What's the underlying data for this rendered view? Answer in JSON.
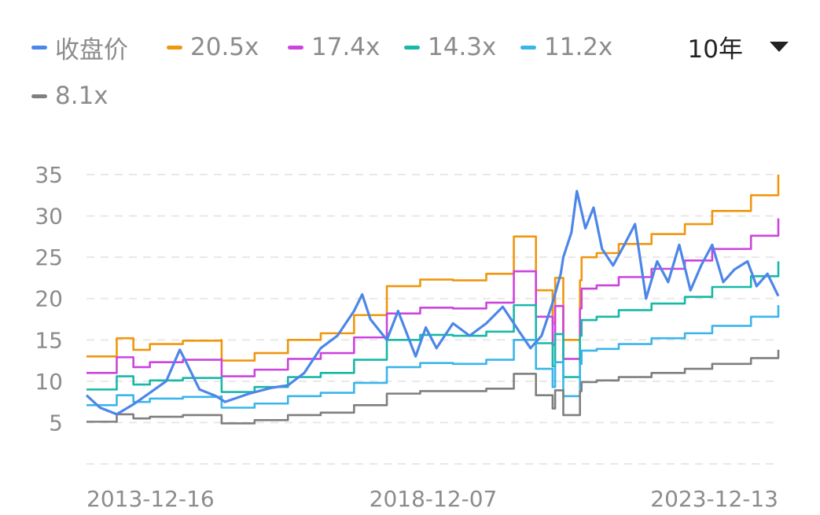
{
  "legend": [
    {
      "label": "收盘价",
      "color": "#4d86e8"
    },
    {
      "label": "20.5x",
      "color": "#f0960e"
    },
    {
      "label": "17.4x",
      "color": "#cc44dd"
    },
    {
      "label": "14.3x",
      "color": "#17b8a8"
    },
    {
      "label": "11.2x",
      "color": "#3ab5ea"
    },
    {
      "label": "8.1x",
      "color": "#7f7f7f"
    }
  ],
  "period_selector": {
    "label": "10年"
  },
  "chart_data": {
    "type": "line",
    "ylim": [
      0,
      35
    ],
    "yticks": [
      35,
      30,
      25,
      20,
      15,
      10,
      5
    ],
    "x_ticks": [
      "2013-12-16",
      "2018-12-07",
      "2023-12-13"
    ],
    "x_range": [
      "2013-12-16",
      "2024-05-31"
    ],
    "grid": true,
    "legend_position": "top-left",
    "series": [
      {
        "name": "20.5x",
        "color": "#f0960e",
        "x": [
          "2013-12-16",
          "2014-06-01",
          "2014-06-01",
          "2014-09-01",
          "2014-12-01",
          "2015-06-01",
          "2016-01-01",
          "2016-01-01",
          "2016-07-01",
          "2017-01-01",
          "2017-07-01",
          "2018-01-01",
          "2018-07-01",
          "2019-01-01",
          "2019-07-01",
          "2020-01-01",
          "2020-06-01",
          "2020-06-01",
          "2020-10-01",
          "2021-01-01",
          "2021-01-15",
          "2021-03-01",
          "2021-06-01",
          "2021-06-10",
          "2021-09-01",
          "2022-01-01",
          "2022-07-01",
          "2023-01-01",
          "2023-06-01",
          "2024-01-01",
          "2024-05-31"
        ],
        "y": [
          13.0,
          13.8,
          15.2,
          13.8,
          14.5,
          14.9,
          15.0,
          12.5,
          13.4,
          15.0,
          15.8,
          18.0,
          21.5,
          22.3,
          22.2,
          23.0,
          23.8,
          27.5,
          21.0,
          17.0,
          22.5,
          15.0,
          22.2,
          25.0,
          25.5,
          26.6,
          27.8,
          29.0,
          30.6,
          32.5,
          35.0
        ]
      },
      {
        "name": "17.4x",
        "color": "#cc44dd",
        "x": [
          "2013-12-16",
          "2014-06-01",
          "2014-06-01",
          "2014-09-01",
          "2014-12-01",
          "2015-06-01",
          "2016-01-01",
          "2016-01-01",
          "2016-07-01",
          "2017-01-01",
          "2017-07-01",
          "2018-01-01",
          "2018-07-01",
          "2019-01-01",
          "2019-07-01",
          "2020-01-01",
          "2020-06-01",
          "2020-06-01",
          "2020-10-01",
          "2021-01-01",
          "2021-01-15",
          "2021-03-01",
          "2021-06-01",
          "2021-06-10",
          "2021-09-01",
          "2022-01-01",
          "2022-07-01",
          "2023-01-01",
          "2023-06-01",
          "2024-01-01",
          "2024-05-31"
        ],
        "y": [
          11.0,
          11.7,
          12.9,
          11.7,
          12.3,
          12.6,
          12.7,
          10.6,
          11.4,
          12.7,
          13.4,
          15.3,
          18.2,
          18.9,
          18.8,
          19.5,
          20.2,
          23.3,
          17.8,
          14.4,
          19.1,
          12.7,
          18.8,
          21.2,
          21.6,
          22.6,
          23.6,
          24.6,
          26.0,
          27.6,
          29.7
        ]
      },
      {
        "name": "14.3x",
        "color": "#17b8a8",
        "x": [
          "2013-12-16",
          "2014-06-01",
          "2014-06-01",
          "2014-09-01",
          "2014-12-01",
          "2015-06-01",
          "2016-01-01",
          "2016-01-01",
          "2016-07-01",
          "2017-01-01",
          "2017-07-01",
          "2018-01-01",
          "2018-07-01",
          "2019-01-01",
          "2019-07-01",
          "2020-01-01",
          "2020-06-01",
          "2020-06-01",
          "2020-10-01",
          "2021-01-01",
          "2021-01-15",
          "2021-03-01",
          "2021-06-01",
          "2021-06-10",
          "2021-09-01",
          "2022-01-01",
          "2022-07-01",
          "2023-01-01",
          "2023-06-01",
          "2024-01-01",
          "2024-05-31"
        ],
        "y": [
          9.0,
          9.6,
          10.6,
          9.6,
          10.1,
          10.4,
          10.5,
          8.7,
          9.3,
          10.5,
          11.0,
          12.6,
          15.0,
          15.6,
          15.5,
          16.0,
          16.6,
          19.2,
          14.6,
          11.8,
          15.7,
          10.5,
          15.5,
          17.4,
          17.8,
          18.6,
          19.4,
          20.2,
          21.4,
          22.7,
          24.5
        ]
      },
      {
        "name": "11.2x",
        "color": "#3ab5ea",
        "x": [
          "2013-12-16",
          "2014-06-01",
          "2014-06-01",
          "2014-09-01",
          "2014-12-01",
          "2015-06-01",
          "2016-01-01",
          "2016-01-01",
          "2016-07-01",
          "2017-01-01",
          "2017-07-01",
          "2018-01-01",
          "2018-07-01",
          "2019-01-01",
          "2019-07-01",
          "2020-01-01",
          "2020-06-01",
          "2020-06-01",
          "2020-10-01",
          "2021-01-01",
          "2021-01-15",
          "2021-03-01",
          "2021-06-01",
          "2021-06-10",
          "2021-09-01",
          "2022-01-01",
          "2022-07-01",
          "2023-01-01",
          "2023-06-01",
          "2024-01-01",
          "2024-05-31"
        ],
        "y": [
          7.1,
          7.5,
          8.3,
          7.5,
          7.9,
          8.1,
          8.2,
          6.8,
          7.3,
          8.2,
          8.6,
          9.8,
          11.7,
          12.2,
          12.1,
          12.6,
          13.0,
          15.0,
          11.5,
          9.3,
          12.3,
          8.2,
          12.1,
          13.7,
          13.9,
          14.5,
          15.2,
          15.8,
          16.7,
          17.8,
          19.2
        ]
      },
      {
        "name": "8.1x",
        "color": "#7f7f7f",
        "x": [
          "2013-12-16",
          "2014-06-01",
          "2014-06-01",
          "2014-09-01",
          "2014-12-01",
          "2015-06-01",
          "2016-01-01",
          "2016-01-01",
          "2016-07-01",
          "2017-01-01",
          "2017-07-01",
          "2018-01-01",
          "2018-07-01",
          "2019-01-01",
          "2019-07-01",
          "2020-01-01",
          "2020-06-01",
          "2020-06-01",
          "2020-10-01",
          "2021-01-01",
          "2021-01-15",
          "2021-03-01",
          "2021-06-01",
          "2021-06-10",
          "2021-09-01",
          "2022-01-01",
          "2022-07-01",
          "2023-01-01",
          "2023-06-01",
          "2024-01-01",
          "2024-05-31"
        ],
        "y": [
          5.1,
          5.5,
          6.0,
          5.5,
          5.7,
          5.9,
          5.9,
          4.9,
          5.3,
          5.9,
          6.2,
          7.1,
          8.5,
          8.8,
          8.8,
          9.1,
          9.4,
          10.9,
          8.3,
          6.7,
          8.9,
          5.9,
          8.8,
          9.9,
          10.1,
          10.5,
          11.0,
          11.5,
          12.1,
          12.8,
          13.8
        ]
      },
      {
        "name": "收盘价",
        "color": "#4d86e8",
        "x": [
          "2013-12-16",
          "2014-03-01",
          "2014-06-01",
          "2014-09-01",
          "2014-12-01",
          "2015-03-01",
          "2015-05-15",
          "2015-06-15",
          "2015-09-01",
          "2015-12-01",
          "2016-01-20",
          "2016-06-01",
          "2016-10-01",
          "2017-01-01",
          "2017-04-01",
          "2017-07-01",
          "2017-10-01",
          "2018-01-01",
          "2018-02-15",
          "2018-04-01",
          "2018-07-01",
          "2018-09-01",
          "2018-12-07",
          "2019-02-01",
          "2019-04-01",
          "2019-07-01",
          "2019-10-01",
          "2020-01-01",
          "2020-04-01",
          "2020-07-01",
          "2020-09-01",
          "2020-11-01",
          "2021-01-01",
          "2021-02-15",
          "2021-03-01",
          "2021-04-15",
          "2021-05-15",
          "2021-07-01",
          "2021-08-15",
          "2021-10-01",
          "2021-12-01",
          "2022-02-01",
          "2022-04-01",
          "2022-06-01",
          "2022-08-01",
          "2022-10-01",
          "2022-12-01",
          "2023-02-01",
          "2023-04-01",
          "2023-06-01",
          "2023-08-01",
          "2023-10-01",
          "2023-12-13",
          "2024-02-01",
          "2024-04-01",
          "2024-05-31"
        ],
        "y": [
          8.3,
          6.8,
          6.0,
          7.2,
          8.6,
          10.0,
          13.8,
          12.5,
          9.0,
          8.2,
          7.5,
          8.5,
          9.2,
          9.5,
          11.0,
          14.0,
          15.5,
          18.5,
          20.5,
          17.5,
          15.0,
          18.5,
          13.0,
          16.5,
          14.0,
          17.0,
          15.5,
          17.0,
          19.0,
          16.0,
          14.0,
          15.5,
          19.5,
          23.0,
          25.0,
          28.0,
          33.0,
          28.5,
          31.0,
          26.0,
          24.0,
          26.5,
          29.0,
          20.0,
          24.5,
          22.0,
          26.5,
          21.0,
          24.0,
          26.5,
          22.0,
          23.5,
          24.5,
          21.5,
          23.0,
          20.3
        ]
      }
    ]
  }
}
